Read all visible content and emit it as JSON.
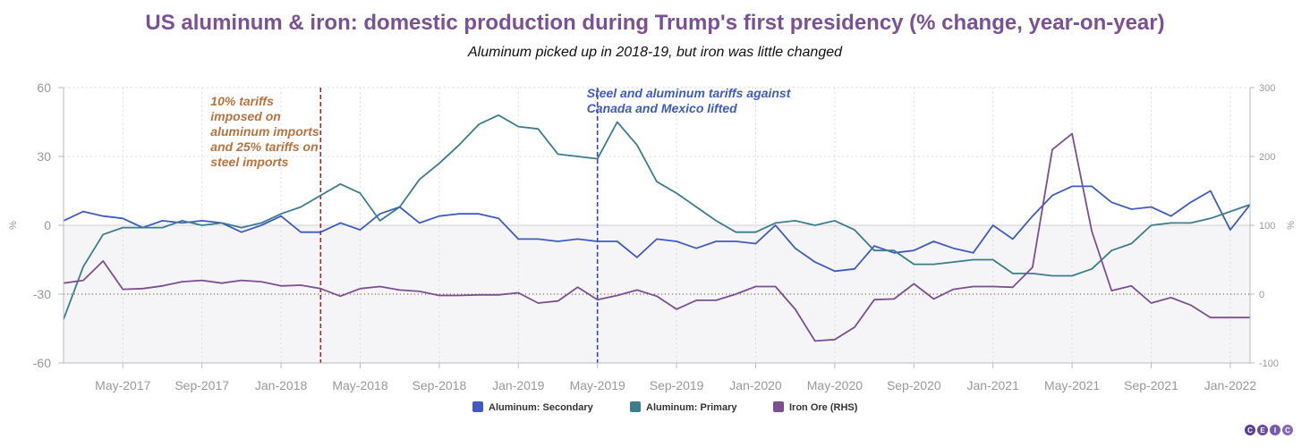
{
  "title": "US aluminum & iron: domestic production during Trump's first presidency (% change, year-on-year)",
  "subtitle": "Aluminum picked up in 2018-19, but iron was little changed",
  "logo_text": "CEIC",
  "colors": {
    "secondary": "#3f5bbf",
    "primary": "#3b7d8c",
    "iron": "#7b4f91",
    "annotation1": "#b8733f",
    "annotation2": "#3f5bbf",
    "vline1": "#a0282d",
    "vline2": "#2f45c8",
    "logo": "#6a4a9c"
  },
  "chart_data": {
    "type": "line",
    "x_start": "2017-02",
    "x_end": "2022-02",
    "x_ticks": [
      "May-2017",
      "Sep-2017",
      "Jan-2018",
      "May-2018",
      "Sep-2018",
      "Jan-2019",
      "May-2019",
      "Sep-2019",
      "Jan-2020",
      "May-2020",
      "Sep-2020",
      "Jan-2021",
      "May-2021",
      "Sep-2021",
      "Jan-2022"
    ],
    "ylabel_left": "%",
    "ylabel_right": "%",
    "ylim_left": [
      -60,
      60
    ],
    "yticks_left": [
      -60,
      -30,
      0,
      30,
      60
    ],
    "ylim_right": [
      -100,
      300
    ],
    "yticks_right": [
      -100,
      0,
      100,
      200,
      300
    ],
    "grid": true,
    "legend_position": "bottom",
    "series": [
      {
        "name": "Aluminum: Secondary",
        "axis": "left",
        "values": [
          2,
          6,
          4,
          3,
          -1,
          2,
          1,
          2,
          1,
          -3,
          0,
          4,
          -3,
          -3,
          1,
          -2,
          5,
          8,
          1,
          4,
          5,
          5,
          3,
          -6,
          -6,
          -7,
          -6,
          -7,
          -7,
          -14,
          -6,
          -7,
          -10,
          -7,
          -7,
          -8,
          0,
          -10,
          -16,
          -20,
          -19,
          -9,
          -12,
          -11,
          -7,
          -10,
          -12,
          0,
          -6,
          4,
          13,
          17,
          17,
          10,
          7,
          8,
          4,
          10,
          15,
          -2,
          9
        ]
      },
      {
        "name": "Aluminum: Primary",
        "axis": "left",
        "values": [
          -41,
          -18,
          -4,
          -1,
          -1,
          -1,
          2,
          0,
          1,
          -1,
          1,
          5,
          8,
          13,
          18,
          14,
          2,
          8,
          20,
          27,
          35,
          44,
          48,
          43,
          42,
          31,
          30,
          29,
          45,
          35,
          19,
          14,
          8,
          2,
          -3,
          -3,
          1,
          2,
          0,
          2,
          -2,
          -11,
          -11,
          -17,
          -17,
          -16,
          -15,
          -15,
          -21,
          -21,
          -22,
          -22,
          -19,
          -11,
          -8,
          0,
          1,
          1,
          3,
          6,
          9
        ]
      },
      {
        "name": "Iron Ore (RHS)",
        "axis": "right",
        "values": [
          16,
          20,
          48,
          7,
          8,
          12,
          18,
          20,
          16,
          20,
          18,
          12,
          13,
          8,
          -3,
          8,
          11,
          6,
          4,
          -2,
          -2,
          -1,
          -1,
          2,
          -13,
          -10,
          10,
          -8,
          -2,
          6,
          -3,
          -22,
          -9,
          -9,
          0,
          11,
          11,
          -22,
          -68,
          -66,
          -48,
          -8,
          -7,
          15,
          -7,
          7,
          11,
          11,
          10,
          39,
          210,
          233,
          91,
          5,
          12,
          -13,
          -5,
          -16,
          -34,
          -34,
          -34
        ]
      }
    ],
    "annotations": [
      {
        "date": "2018-03",
        "text": [
          "10% tariffs",
          "imposed on",
          "aluminum imports",
          "and 25% tariffs on",
          "steel imports"
        ]
      },
      {
        "date": "2019-05",
        "text": [
          "Steel and aluminum tariffs against",
          "Canada and Mexico lifted"
        ]
      }
    ]
  }
}
